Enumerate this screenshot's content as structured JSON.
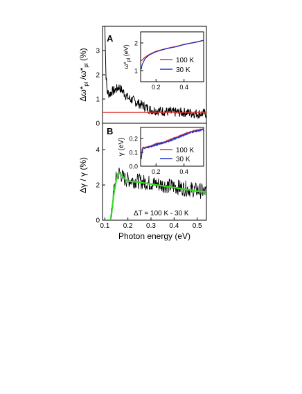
{
  "chart_data": [
    {
      "panel": "A",
      "type": "line",
      "ylabel_parts": [
        "Δω*",
        "pl",
        " /ω*",
        "pl",
        " (%)"
      ],
      "xlim": [
        0.09,
        0.54
      ],
      "ylim": [
        0,
        4
      ],
      "xticks": [],
      "yticks": [
        "0",
        "1",
        "2",
        "3"
      ],
      "series": [
        {
          "color": "#000000",
          "x": [
            0.095,
            0.1,
            0.102,
            0.105,
            0.11,
            0.12,
            0.13,
            0.15,
            0.16,
            0.17,
            0.18,
            0.2,
            0.22,
            0.25,
            0.28,
            0.3,
            0.35,
            0.4,
            0.45,
            0.5,
            0.54
          ],
          "y": [
            4.5,
            4.5,
            3.2,
            2.0,
            1.3,
            1.2,
            1.3,
            1.4,
            1.5,
            1.4,
            1.3,
            1.05,
            0.95,
            0.8,
            0.65,
            0.55,
            0.5,
            0.45,
            0.45,
            0.4,
            0.4
          ],
          "noise": 0.2
        },
        {
          "color": "#e0302a",
          "x": [
            0.09,
            0.54
          ],
          "y": [
            0.45,
            0.45
          ]
        }
      ],
      "inset": {
        "ylabel_parts": [
          "ω*",
          "pl",
          " (eV)"
        ],
        "xlim": [
          0.09,
          0.54
        ],
        "ylim": [
          0.6,
          2.4
        ],
        "xticks": [
          "0.2",
          "0.4"
        ],
        "yticks": [
          "1",
          "2"
        ],
        "legend": [
          "100 K",
          "30 K"
        ],
        "series": [
          {
            "name": "100 K",
            "color": "#e0302a",
            "x": [
              0.095,
              0.1,
              0.12,
              0.15,
              0.2,
              0.25,
              0.3,
              0.35,
              0.4,
              0.45,
              0.5,
              0.54
            ],
            "y": [
              1.35,
              1.38,
              1.48,
              1.58,
              1.7,
              1.77,
              1.83,
              1.88,
              1.95,
              2.0,
              2.05,
              2.1
            ]
          },
          {
            "name": "30 K",
            "color": "#2234c8",
            "x": [
              0.095,
              0.1,
              0.12,
              0.15,
              0.2,
              0.25,
              0.3,
              0.35,
              0.4,
              0.45,
              0.5,
              0.54
            ],
            "y": [
              1.05,
              1.2,
              1.42,
              1.56,
              1.68,
              1.76,
              1.82,
              1.87,
              1.94,
              1.99,
              2.04,
              2.09
            ]
          }
        ]
      }
    },
    {
      "panel": "B",
      "type": "line",
      "ylabel_parts": [
        "Δγ / γ  (%)"
      ],
      "xlabel": "Photon energy (eV)",
      "xlim": [
        0.09,
        0.54
      ],
      "ylim": [
        0,
        5.5
      ],
      "xticks": [
        "0.1",
        "0.2",
        "0.3",
        "0.4",
        "0.5"
      ],
      "yticks": [
        "0",
        "2",
        "4"
      ],
      "annotation": "ΔT = 100 K - 30 K",
      "series": [
        {
          "color": "#000000",
          "x": [
            0.125,
            0.13,
            0.14,
            0.15,
            0.16,
            0.17,
            0.18,
            0.19,
            0.2,
            0.25,
            0.3,
            0.35,
            0.4,
            0.45,
            0.5,
            0.54
          ],
          "y": [
            0.0,
            0.4,
            1.8,
            2.4,
            2.7,
            2.6,
            2.4,
            2.3,
            2.3,
            2.2,
            2.1,
            2.0,
            1.9,
            1.8,
            1.7,
            1.6
          ],
          "noise": 0.45
        },
        {
          "color": "#33dd22",
          "x": [
            0.125,
            0.13,
            0.14,
            0.15,
            0.16,
            0.17,
            0.18,
            0.19,
            0.2,
            0.25,
            0.3,
            0.35,
            0.4,
            0.45,
            0.5,
            0.54
          ],
          "y": [
            0.0,
            0.5,
            1.6,
            2.3,
            2.65,
            2.6,
            2.45,
            2.3,
            2.22,
            2.15,
            2.05,
            1.95,
            1.85,
            1.75,
            1.65,
            1.6
          ]
        }
      ],
      "inset": {
        "ylabel_parts": [
          "γ (eV)"
        ],
        "xlim": [
          0.09,
          0.54
        ],
        "ylim": [
          0.0,
          0.28
        ],
        "xticks": [
          "0.2",
          "0.4"
        ],
        "yticks": [
          "0.0",
          "0.1",
          "0.2"
        ],
        "legend": [
          "100 K",
          "30 K"
        ],
        "series": [
          {
            "name": "100 K",
            "color": "#e0302a",
            "x": [
              0.095,
              0.1,
              0.11,
              0.12,
              0.13,
              0.15,
              0.2,
              0.25,
              0.3,
              0.35,
              0.4,
              0.45,
              0.5,
              0.54
            ],
            "y": [
              0.06,
              0.12,
              0.14,
              0.13,
              0.14,
              0.14,
              0.16,
              0.17,
              0.19,
              0.21,
              0.23,
              0.25,
              0.26,
              0.27
            ],
            "noise": 0.004
          },
          {
            "name": "30 K",
            "color": "#2234c8",
            "x": [
              0.095,
              0.1,
              0.11,
              0.12,
              0.13,
              0.15,
              0.2,
              0.25,
              0.3,
              0.35,
              0.4,
              0.45,
              0.5,
              0.54
            ],
            "y": [
              0.05,
              0.1,
              0.135,
              0.13,
              0.135,
              0.138,
              0.155,
              0.168,
              0.185,
              0.205,
              0.225,
              0.245,
              0.255,
              0.268
            ],
            "noise": 0.004
          }
        ]
      }
    }
  ]
}
